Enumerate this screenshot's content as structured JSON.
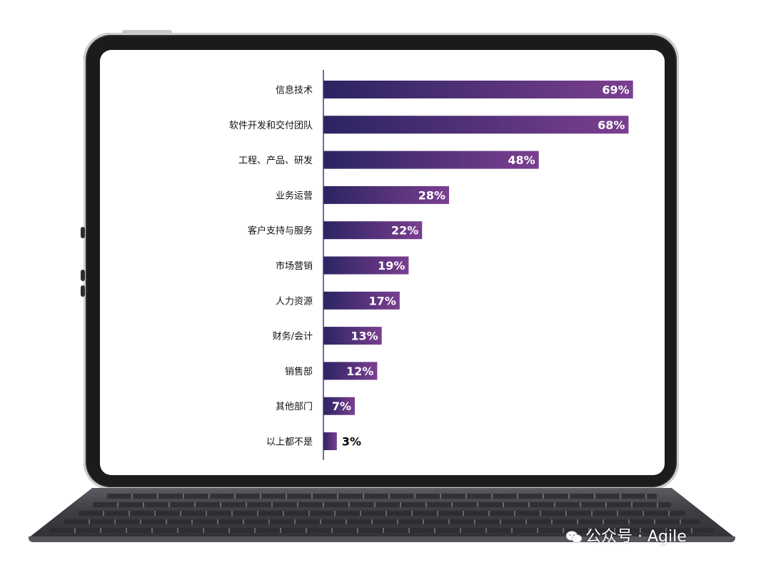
{
  "watermark": {
    "text": "公众号 · Agile",
    "icon": "wechat-icon"
  },
  "colors": {
    "bar_start": "#2b2462",
    "bar_end": "#7b3f90",
    "axis": "#5a2d82",
    "label": "#111111",
    "value_inside": "#ffffff",
    "value_outside": "#000000"
  },
  "chart_data": {
    "type": "bar",
    "orientation": "horizontal",
    "categories": [
      "信息技术",
      "软件开发和交付团队",
      "工程、产品、研发",
      "业务运营",
      "客户支持与服务",
      "市场营销",
      "人力资源",
      "财务/会计",
      "销售部",
      "其他部门",
      "以上都不是"
    ],
    "values": [
      69,
      68,
      48,
      28,
      22,
      19,
      17,
      13,
      12,
      7,
      3
    ],
    "value_labels": [
      "69%",
      "68%",
      "48%",
      "28%",
      "22%",
      "19%",
      "17%",
      "13%",
      "12%",
      "7%",
      "3%"
    ],
    "unit": "%",
    "xlim": [
      0,
      70
    ],
    "grid": false,
    "legend": "none"
  }
}
